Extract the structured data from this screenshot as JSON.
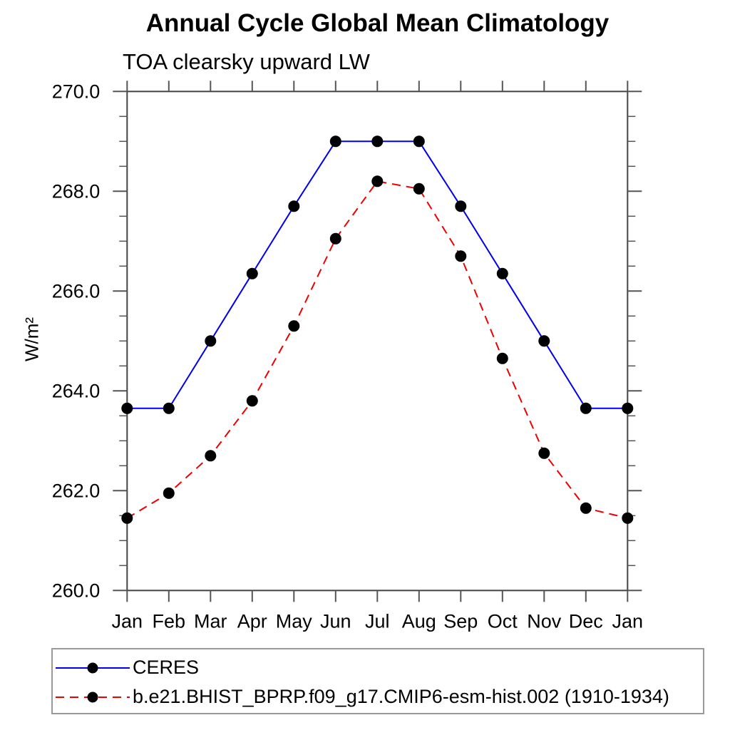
{
  "chart_data": {
    "type": "line",
    "title": "Annual Cycle Global Mean Climatology",
    "subtitle": "TOA clearsky upward LW",
    "ylabel": "W/m²",
    "xlabel": "",
    "ylim": [
      260.0,
      270.0
    ],
    "ytick_interval": 2.0,
    "ytick_minor_interval": 0.5,
    "ytick_labels": [
      "260.0",
      "262.0",
      "264.0",
      "266.0",
      "268.0",
      "270.0"
    ],
    "categories": [
      "Jan",
      "Feb",
      "Mar",
      "Apr",
      "May",
      "Jun",
      "Jul",
      "Aug",
      "Sep",
      "Oct",
      "Nov",
      "Dec",
      "Jan"
    ],
    "grid": false,
    "legend_position": "bottom-left-box",
    "axis_color": "#444444",
    "tick_color": "#555555",
    "series": [
      {
        "name": "CERES",
        "color": "#0000ee",
        "style": "solid",
        "marker": "circle",
        "marker_color": "#000000",
        "values": [
          263.65,
          263.65,
          265.0,
          266.35,
          267.7,
          269.0,
          269.0,
          269.0,
          267.7,
          266.35,
          265.0,
          263.65,
          263.65
        ]
      },
      {
        "name": "b.e21.BHIST_BPRP.f09_g17.CMIP6-esm-hist.002 (1910-1934)",
        "color": "#ee0000",
        "style": "dashed",
        "marker": "circle",
        "marker_color": "#000000",
        "values": [
          261.45,
          261.95,
          262.7,
          263.8,
          265.3,
          267.05,
          268.2,
          268.05,
          266.7,
          264.65,
          262.75,
          261.65,
          261.45
        ]
      }
    ]
  }
}
